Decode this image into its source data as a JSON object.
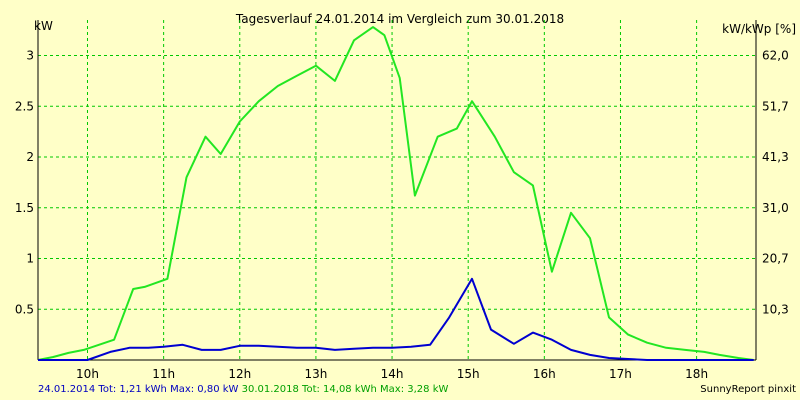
{
  "chart_data": {
    "type": "line",
    "title": "Tagesverlauf 24.01.2014 im Vergleich zum 30.01.2018",
    "y_left_label": "kW",
    "y_right_label": "kW/kWp [%]",
    "grid": true,
    "x_range_hours": [
      9.35,
      18.78
    ],
    "ylim": [
      0,
      3.35
    ],
    "x_ticks": [
      {
        "label": "10h",
        "hour": 10
      },
      {
        "label": "11h",
        "hour": 11
      },
      {
        "label": "12h",
        "hour": 12
      },
      {
        "label": "13h",
        "hour": 13
      },
      {
        "label": "14h",
        "hour": 14
      },
      {
        "label": "15h",
        "hour": 15
      },
      {
        "label": "16h",
        "hour": 16
      },
      {
        "label": "17h",
        "hour": 17
      },
      {
        "label": "18h",
        "hour": 18
      }
    ],
    "y_ticks_left": [
      {
        "label": "0.5",
        "value": 0.5
      },
      {
        "label": "1",
        "value": 1
      },
      {
        "label": "1.5",
        "value": 1.5
      },
      {
        "label": "2",
        "value": 2
      },
      {
        "label": "2.5",
        "value": 2.5
      },
      {
        "label": "3",
        "value": 3
      }
    ],
    "y_ticks_right": [
      {
        "label": "10,3",
        "value": 0.5
      },
      {
        "label": "20,7",
        "value": 1
      },
      {
        "label": "31,0",
        "value": 1.5
      },
      {
        "label": "41,3",
        "value": 2
      },
      {
        "label": "51,7",
        "value": 2.5
      },
      {
        "label": "62,0",
        "value": 3
      }
    ],
    "series": [
      {
        "name": "30.01.2018",
        "color": "#22e622",
        "x": [
          9.35,
          9.55,
          9.75,
          9.95,
          10.15,
          10.35,
          10.6,
          10.75,
          11.05,
          11.3,
          11.55,
          11.75,
          12.0,
          12.25,
          12.5,
          12.75,
          13.0,
          13.25,
          13.5,
          13.75,
          13.9,
          14.1,
          14.3,
          14.6,
          14.85,
          15.05,
          15.35,
          15.6,
          15.85,
          16.1,
          16.35,
          16.6,
          16.85,
          17.1,
          17.35,
          17.6,
          17.85,
          18.1,
          18.3,
          18.55,
          18.75
        ],
        "y": [
          0.0,
          0.03,
          0.07,
          0.1,
          0.15,
          0.2,
          0.7,
          0.72,
          0.8,
          1.8,
          2.2,
          2.03,
          2.35,
          2.55,
          2.7,
          2.8,
          2.9,
          2.75,
          3.15,
          3.28,
          3.2,
          2.78,
          1.62,
          2.2,
          2.28,
          2.55,
          2.2,
          1.85,
          1.72,
          0.87,
          1.45,
          1.2,
          0.42,
          0.25,
          0.17,
          0.12,
          0.1,
          0.08,
          0.05,
          0.02,
          0.0
        ]
      },
      {
        "name": "24.01.2014",
        "color": "#0000d0",
        "x": [
          9.35,
          9.6,
          9.85,
          10.0,
          10.3,
          10.55,
          10.8,
          11.0,
          11.25,
          11.5,
          11.75,
          12.0,
          12.25,
          12.5,
          12.75,
          13.0,
          13.25,
          13.5,
          13.75,
          14.0,
          14.25,
          14.5,
          14.75,
          15.05,
          15.3,
          15.6,
          15.85,
          16.1,
          16.35,
          16.6,
          16.85,
          17.1,
          17.35,
          17.6,
          17.85,
          18.1,
          18.35,
          18.55,
          18.75
        ],
        "y": [
          0.0,
          0.0,
          0.0,
          0.0,
          0.08,
          0.12,
          0.12,
          0.13,
          0.15,
          0.1,
          0.1,
          0.14,
          0.14,
          0.13,
          0.12,
          0.12,
          0.1,
          0.11,
          0.12,
          0.12,
          0.13,
          0.15,
          0.42,
          0.8,
          0.3,
          0.16,
          0.27,
          0.2,
          0.1,
          0.05,
          0.02,
          0.01,
          0.0,
          0.0,
          0.0,
          0.0,
          0.0,
          0.0,
          0.0
        ]
      }
    ]
  },
  "footer": {
    "summary_2014": "24.01.2014 Tot: 1,21 kWh Max: 0,80 kW",
    "summary_2018": "30.01.2018 Tot: 14,08 kWh Max: 3,28 kW",
    "credit": "SunnyReport pinxit"
  },
  "colors": {
    "background": "#ffffc8",
    "grid": "#00c800",
    "axis": "#000000",
    "footer_2014": "#0000c0",
    "footer_2018": "#00a000"
  }
}
